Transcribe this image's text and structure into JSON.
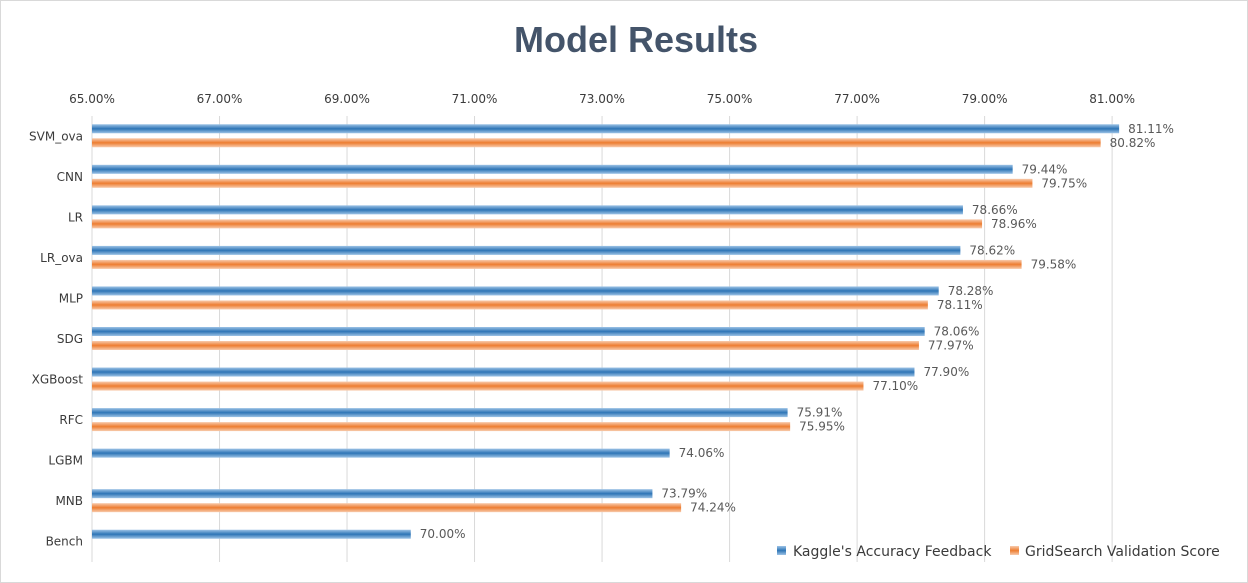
{
  "chart_data": {
    "type": "bar",
    "orientation": "horizontal",
    "title": "Model Results",
    "categories": [
      "SVM_ova",
      "CNN",
      "LR",
      "LR_ova",
      "MLP",
      "SDG",
      "XGBoost",
      "RFC",
      "LGBM",
      "MNB",
      "Bench"
    ],
    "series": [
      {
        "name": "Kaggle's Accuracy Feedback",
        "color": "#2e75b6",
        "values": [
          81.11,
          79.44,
          78.66,
          78.62,
          78.28,
          78.06,
          77.9,
          75.91,
          74.06,
          73.79,
          70.0
        ],
        "labels": [
          "81.11%",
          "79.44%",
          "78.66%",
          "78.62%",
          "78.28%",
          "78.06%",
          "77.90%",
          "75.91%",
          "74.06%",
          "73.79%",
          "70.00%"
        ]
      },
      {
        "name": "GridSearch Validation Score",
        "color": "#ed7d31",
        "values": [
          80.82,
          79.75,
          78.96,
          79.58,
          78.11,
          77.97,
          77.1,
          75.95,
          null,
          74.24,
          null
        ],
        "labels": [
          "80.82%",
          "79.75%",
          "78.96%",
          "79.58%",
          "78.11%",
          "77.97%",
          "77.10%",
          "75.95%",
          "",
          "74.24%",
          ""
        ]
      }
    ],
    "xlim": [
      65,
      81.5
    ],
    "xticks": [
      65,
      67,
      69,
      71,
      73,
      75,
      77,
      79,
      81
    ],
    "xtick_labels": [
      "65.00%",
      "67.00%",
      "69.00%",
      "71.00%",
      "73.00%",
      "75.00%",
      "77.00%",
      "79.00%",
      "81.00%"
    ],
    "x_axis_position": "top",
    "grid": true,
    "legend_position": "bottom-right"
  }
}
